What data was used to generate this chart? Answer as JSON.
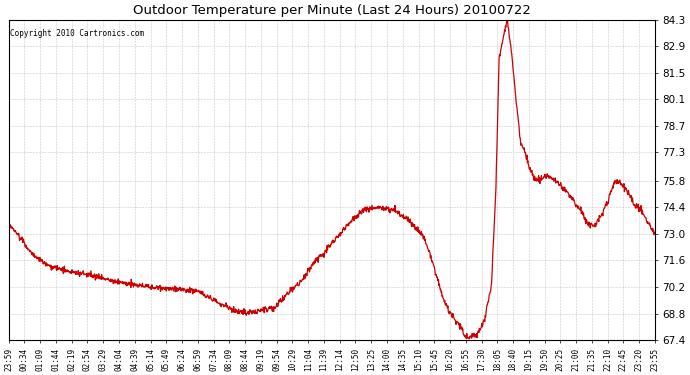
{
  "title": "Outdoor Temperature per Minute (Last 24 Hours) 20100722",
  "copyright": "Copyright 2010 Cartronics.com",
  "line_color": "#cc0000",
  "background_color": "#ffffff",
  "grid_color": "#bbbbbb",
  "ylim": [
    67.4,
    84.3
  ],
  "yticks": [
    67.4,
    68.8,
    70.2,
    71.6,
    73.0,
    74.4,
    75.8,
    77.3,
    78.7,
    80.1,
    81.5,
    82.9,
    84.3
  ],
  "xtick_labels": [
    "23:59",
    "00:34",
    "01:09",
    "01:44",
    "02:19",
    "02:54",
    "03:29",
    "04:04",
    "04:39",
    "05:14",
    "05:49",
    "06:24",
    "06:59",
    "07:34",
    "08:09",
    "08:44",
    "09:19",
    "09:54",
    "10:29",
    "11:04",
    "11:39",
    "12:14",
    "12:50",
    "13:25",
    "14:00",
    "14:35",
    "15:10",
    "15:45",
    "16:20",
    "16:55",
    "17:30",
    "18:05",
    "18:40",
    "19:15",
    "19:50",
    "20:25",
    "21:00",
    "21:35",
    "22:10",
    "22:45",
    "23:20",
    "23:55"
  ],
  "waypoints_x": [
    0,
    20,
    50,
    90,
    140,
    190,
    240,
    300,
    360,
    390,
    420,
    455,
    480,
    510,
    540,
    570,
    595,
    620,
    650,
    680,
    720,
    755,
    780,
    800,
    820,
    840,
    860,
    880,
    900,
    920,
    935,
    950,
    965,
    980,
    1000,
    1010,
    1017,
    1023,
    1030,
    1045,
    1060,
    1075,
    1085,
    1092,
    1100,
    1110,
    1120,
    1130,
    1140,
    1150,
    1160,
    1168,
    1175,
    1185,
    1200,
    1215,
    1230,
    1245,
    1260,
    1275,
    1290,
    1305,
    1320,
    1335,
    1350,
    1365,
    1380,
    1395,
    1410,
    1425,
    1439
  ],
  "waypoints_y": [
    73.5,
    73.0,
    72.0,
    71.3,
    71.0,
    70.8,
    70.5,
    70.25,
    70.1,
    70.05,
    70.0,
    69.5,
    69.2,
    68.9,
    68.85,
    69.0,
    69.2,
    69.8,
    70.5,
    71.5,
    72.5,
    73.5,
    74.1,
    74.35,
    74.4,
    74.35,
    74.2,
    73.9,
    73.5,
    73.0,
    72.2,
    71.0,
    69.8,
    68.9,
    68.3,
    68.0,
    67.6,
    67.5,
    67.55,
    67.8,
    68.5,
    70.3,
    75.5,
    82.3,
    83.2,
    84.3,
    82.5,
    80.0,
    77.8,
    77.3,
    76.5,
    76.0,
    75.85,
    75.9,
    76.1,
    75.85,
    75.5,
    75.2,
    74.6,
    74.2,
    73.5,
    73.4,
    74.0,
    74.8,
    75.8,
    75.6,
    75.2,
    74.5,
    74.2,
    73.5,
    73.1
  ]
}
